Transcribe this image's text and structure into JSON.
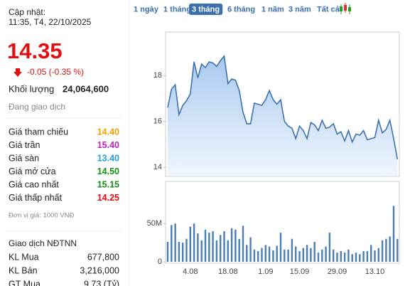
{
  "panel": {
    "update_label": "Cập nhật:",
    "update_time": "11:35, T4, 22/10/2025",
    "price": "14.35",
    "change": "-0.05 (-0.35 %)",
    "volume_label": "Khối lượng",
    "volume": "24,064,600",
    "status": "Đang giao dịch",
    "prices": [
      {
        "label": "Giá tham chiếu",
        "value": "14.40",
        "color": "#f0a000"
      },
      {
        "label": "Giá trần",
        "value": "15.40",
        "color": "#c020c0"
      },
      {
        "label": "Giá sàn",
        "value": "13.40",
        "color": "#20a0e0"
      },
      {
        "label": "Giá mở cửa",
        "value": "14.50",
        "color": "#109010"
      },
      {
        "label": "Giá cao nhất",
        "value": "15.15",
        "color": "#109010"
      },
      {
        "label": "Giá thấp nhất",
        "value": "14.25",
        "color": "#e01010"
      }
    ],
    "unit_note": "Đơn vị giá: 1000 VNĐ",
    "foreign_title": "Giao dịch NĐTNN",
    "foreign": [
      {
        "label": "KL Mua",
        "value": "677,800"
      },
      {
        "label": "KL Bán",
        "value": "3,216,000"
      },
      {
        "label": "GT Mua",
        "value": "9.73 (Tỷ)"
      }
    ]
  },
  "periods": [
    {
      "label": "1 ngày"
    },
    {
      "label": "1 tháng"
    },
    {
      "label": "3 tháng",
      "selected": true
    },
    {
      "label": "6 tháng"
    },
    {
      "label": "1 năm"
    },
    {
      "label": "3 năm"
    },
    {
      "label": "Tất cả"
    }
  ],
  "chart_data": [
    {
      "type": "area",
      "color": "#3d72b0",
      "values": [
        16.6,
        17.4,
        17.6,
        16.3,
        16.7,
        16.9,
        17.2,
        18.6,
        17.9,
        18.5,
        18.35,
        18.6,
        18.55,
        18.4,
        18.65,
        18.85,
        17.65,
        17.85,
        17.8,
        17.35,
        16.4,
        15.9,
        15.9,
        16.8,
        16.75,
        16.7,
        16.95,
        17.35,
        16.95,
        16.75,
        16.95,
        16.0,
        15.8,
        15.7,
        15.25,
        15.8,
        15.6,
        15.25,
        15.95,
        15.85,
        15.6,
        16.05,
        15.7,
        15.75,
        15.9,
        15.45,
        15.55,
        15.15,
        15.6,
        15.1,
        15.45,
        15.4,
        15.6,
        15.2,
        15.25,
        15.3,
        16.05,
        15.5,
        15.65,
        16.05,
        15.25,
        14.35
      ],
      "ylim": [
        13.6,
        19.9
      ],
      "yticks": [
        14,
        16,
        18
      ]
    },
    {
      "type": "bar",
      "color": "#4a7eb5",
      "categories": [
        null,
        null,
        null,
        null,
        null,
        null,
        "4.08",
        null,
        null,
        null,
        null,
        null,
        null,
        null,
        null,
        null,
        "18.08",
        null,
        null,
        null,
        null,
        null,
        null,
        null,
        null,
        null,
        "1.09",
        null,
        null,
        null,
        null,
        null,
        null,
        null,
        null,
        "15.09",
        null,
        null,
        null,
        null,
        null,
        null,
        null,
        null,
        null,
        "29.09",
        null,
        null,
        null,
        null,
        null,
        null,
        null,
        null,
        null,
        "13.10",
        null,
        null,
        null,
        null,
        null,
        null
      ],
      "values": [
        26000000,
        48000000,
        50000000,
        26000000,
        25000000,
        30000000,
        46000000,
        50000000,
        37000000,
        28000000,
        42000000,
        38000000,
        40000000,
        28000000,
        35000000,
        40000000,
        28000000,
        44000000,
        42000000,
        30000000,
        47000000,
        22000000,
        32000000,
        16000000,
        14000000,
        18000000,
        22000000,
        20000000,
        15000000,
        21000000,
        38000000,
        16000000,
        16000000,
        30000000,
        20000000,
        14000000,
        18000000,
        22000000,
        18000000,
        26000000,
        12000000,
        16000000,
        20000000,
        38000000,
        16000000,
        12000000,
        14000000,
        12000000,
        16000000,
        10000000,
        12000000,
        10000000,
        14000000,
        14000000,
        22000000,
        15000000,
        18000000,
        28000000,
        30000000,
        33000000,
        73000000,
        30000000
      ],
      "ylim": [
        0,
        105000000
      ],
      "yticks": [
        0,
        {
          "value": 50000000,
          "label": "50M"
        }
      ]
    }
  ]
}
